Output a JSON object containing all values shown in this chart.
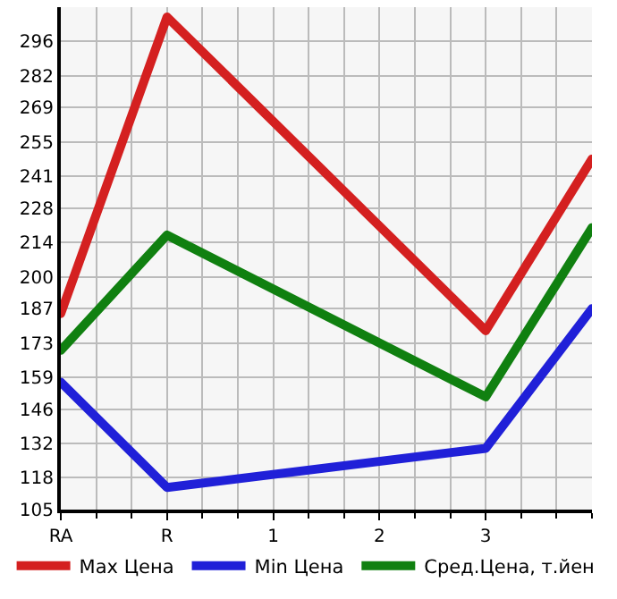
{
  "chart_data": {
    "type": "line",
    "categories": [
      "RA",
      "R",
      "1",
      "2",
      "3",
      null
    ],
    "series": [
      {
        "name": "Max Цена",
        "color": "#d42020",
        "values": [
          185,
          306,
          null,
          null,
          178,
          248
        ]
      },
      {
        "name": "Min Цена",
        "color": "#2020d8",
        "values": [
          157,
          114,
          null,
          null,
          130,
          187
        ]
      },
      {
        "name": "Сред.Цена, т.йен",
        "color": "#108010",
        "values": [
          170,
          217,
          null,
          null,
          151,
          220
        ]
      }
    ],
    "ylim": [
      105,
      310
    ],
    "yticks": [
      105,
      118,
      132,
      146,
      159,
      173,
      187,
      200,
      214,
      228,
      241,
      255,
      269,
      282,
      296
    ],
    "grid": true,
    "legend": "bottom",
    "marker": "none",
    "line_style": "solid"
  }
}
